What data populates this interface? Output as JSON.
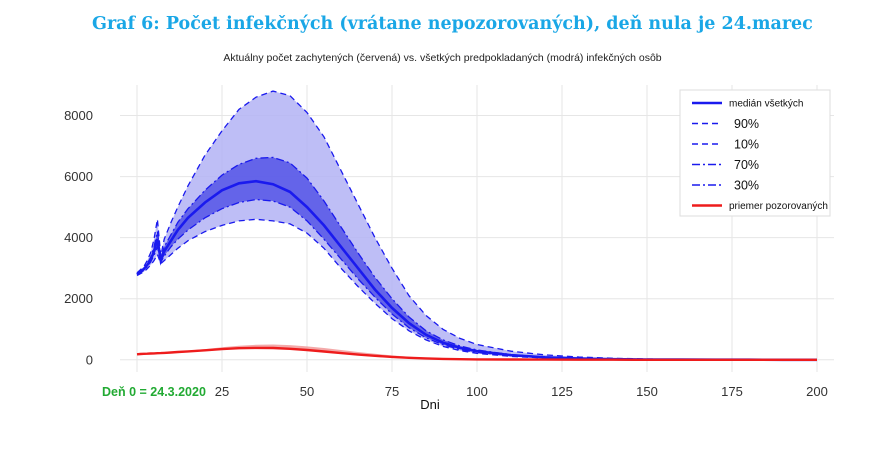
{
  "figure_title": "Graf 6: Počet infekčných (vrátane nepozorovaných), deň nula je 24.marec",
  "chart_data": {
    "type": "area",
    "title": "Aktuálny počet zachytených (červená) vs. všetkých predpokladaných (modrá) infekčných osôb",
    "xlabel": "Dni",
    "ylabel": "",
    "xlim": [
      -5,
      205
    ],
    "ylim": [
      -400,
      9000
    ],
    "x_ticks": [
      25,
      50,
      75,
      100,
      125,
      150,
      175,
      200
    ],
    "y_ticks": [
      0,
      2000,
      4000,
      6000,
      8000
    ],
    "grid": true,
    "legend_position": "top-right",
    "origin_note": "Deň 0 = 24.3.2020",
    "colors": {
      "blue": "#1a1aee",
      "outer_band": "#b3b3f5",
      "inner_band": "#5a5ae8",
      "red": "#ee1c1c",
      "red_band": "#f2a0a0"
    },
    "x": [
      0,
      1,
      2,
      3,
      4,
      5,
      6,
      7,
      8,
      10,
      12,
      15,
      20,
      25,
      30,
      35,
      40,
      45,
      50,
      55,
      60,
      65,
      70,
      75,
      80,
      85,
      90,
      95,
      100,
      110,
      120,
      130,
      140,
      150,
      160,
      170,
      180,
      190,
      200
    ],
    "series": [
      {
        "name": "90%",
        "style": "dashed",
        "values": [
          2850,
          2950,
          3050,
          3250,
          3500,
          3950,
          4600,
          3400,
          3950,
          4500,
          5000,
          5700,
          6700,
          7500,
          8200,
          8600,
          8800,
          8650,
          8100,
          7300,
          6200,
          5100,
          4000,
          3000,
          2100,
          1450,
          1000,
          700,
          500,
          280,
          160,
          90,
          50,
          25,
          12,
          6,
          3,
          2,
          1
        ]
      },
      {
        "name": "70%",
        "style": "dashdot",
        "values": [
          2820,
          2900,
          3000,
          3150,
          3350,
          3700,
          4200,
          3300,
          3700,
          4100,
          4500,
          4950,
          5550,
          6050,
          6400,
          6600,
          6630,
          6450,
          5950,
          5200,
          4350,
          3500,
          2700,
          2000,
          1400,
          950,
          650,
          450,
          320,
          170,
          90,
          45,
          22,
          11,
          5,
          3,
          2,
          1,
          1
        ]
      },
      {
        "name": "medián všetkých",
        "style": "solid",
        "values": [
          2800,
          2880,
          2970,
          3100,
          3270,
          3550,
          3950,
          3250,
          3550,
          3900,
          4250,
          4650,
          5150,
          5550,
          5780,
          5850,
          5750,
          5500,
          5000,
          4400,
          3700,
          3000,
          2300,
          1700,
          1200,
          820,
          560,
          390,
          280,
          150,
          80,
          40,
          20,
          10,
          5,
          3,
          2,
          1,
          1
        ]
      },
      {
        "name": "30%",
        "style": "dashdot",
        "values": [
          2780,
          2850,
          2930,
          3050,
          3200,
          3420,
          3700,
          3200,
          3400,
          3700,
          3950,
          4250,
          4650,
          4950,
          5150,
          5250,
          5200,
          5000,
          4550,
          3950,
          3300,
          2650,
          2050,
          1500,
          1050,
          720,
          490,
          340,
          240,
          130,
          70,
          35,
          17,
          8,
          4,
          2,
          1,
          1,
          0
        ]
      },
      {
        "name": "10%",
        "style": "dashed",
        "values": [
          2760,
          2820,
          2880,
          2980,
          3100,
          3250,
          3450,
          3150,
          3250,
          3450,
          3650,
          3900,
          4200,
          4400,
          4550,
          4600,
          4550,
          4450,
          4150,
          3650,
          3000,
          2400,
          1850,
          1350,
          950,
          650,
          440,
          300,
          210,
          110,
          60,
          30,
          15,
          7,
          3,
          2,
          1,
          0,
          0
        ]
      },
      {
        "name": "priemer pozorovaných",
        "style": "solid-red",
        "values": [
          180,
          190,
          195,
          200,
          205,
          210,
          215,
          220,
          225,
          240,
          255,
          275,
          310,
          350,
          380,
          390,
          385,
          360,
          320,
          270,
          220,
          170,
          130,
          95,
          65,
          45,
          30,
          20,
          14,
          8,
          5,
          3,
          2,
          1,
          1,
          0,
          0,
          0,
          0
        ]
      },
      {
        "name": "",
        "style": "red-band-upper",
        "values": [
          185,
          195,
          200,
          210,
          215,
          220,
          225,
          230,
          240,
          255,
          275,
          300,
          350,
          410,
          460,
          490,
          500,
          480,
          440,
          385,
          320,
          255,
          195,
          145,
          100,
          70,
          48,
          32,
          22,
          12,
          7,
          4,
          2,
          1,
          1,
          0,
          0,
          0,
          0
        ]
      }
    ]
  }
}
